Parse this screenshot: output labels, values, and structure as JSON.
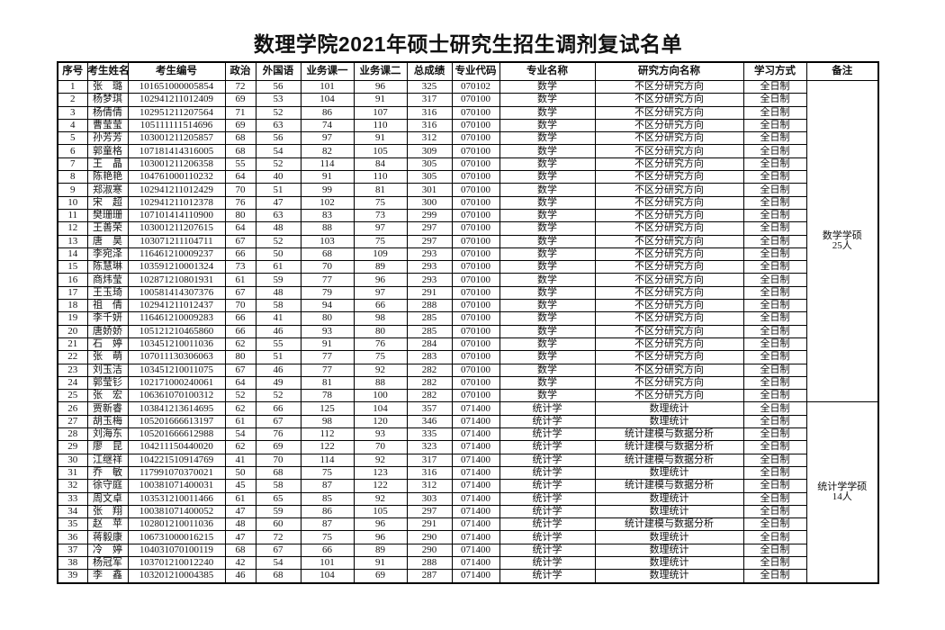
{
  "title": "数理学院2021年硕士研究生招生调剂复试名单",
  "table": {
    "headers": [
      {
        "label": "序号",
        "width": 33
      },
      {
        "label": "考生姓名",
        "width": 45
      },
      {
        "label": "考生编号",
        "width": 108
      },
      {
        "label": "政治",
        "width": 34
      },
      {
        "label": "外国语",
        "width": 50
      },
      {
        "label": "业务课一",
        "width": 59
      },
      {
        "label": "业务课二",
        "width": 59
      },
      {
        "label": "总成绩",
        "width": 50
      },
      {
        "label": "专业代码",
        "width": 53
      },
      {
        "label": "专业名称",
        "width": 106
      },
      {
        "label": "研究方向名称",
        "width": 165
      },
      {
        "label": "学习方式",
        "width": 70
      },
      {
        "label": "备注",
        "width": 80
      }
    ],
    "rows": [
      [
        "1",
        "张　璐",
        "101651000005854",
        "72",
        "56",
        "101",
        "96",
        "325",
        "070102",
        "数学",
        "不区分研究方向",
        "全日制"
      ],
      [
        "2",
        "杨梦琪",
        "102941211012409",
        "69",
        "53",
        "104",
        "91",
        "317",
        "070100",
        "数学",
        "不区分研究方向",
        "全日制"
      ],
      [
        "3",
        "杨倩倩",
        "102951211207564",
        "71",
        "52",
        "86",
        "107",
        "316",
        "070100",
        "数学",
        "不区分研究方向",
        "全日制"
      ],
      [
        "4",
        "曹莹莹",
        "105111111514696",
        "69",
        "63",
        "74",
        "110",
        "316",
        "070100",
        "数学",
        "不区分研究方向",
        "全日制"
      ],
      [
        "5",
        "孙芳芳",
        "103001211205857",
        "68",
        "56",
        "97",
        "91",
        "312",
        "070100",
        "数学",
        "不区分研究方向",
        "全日制"
      ],
      [
        "6",
        "郭童格",
        "107181414316005",
        "68",
        "54",
        "82",
        "105",
        "309",
        "070100",
        "数学",
        "不区分研究方向",
        "全日制"
      ],
      [
        "7",
        "王　晶",
        "103001211206358",
        "55",
        "52",
        "114",
        "84",
        "305",
        "070100",
        "数学",
        "不区分研究方向",
        "全日制"
      ],
      [
        "8",
        "陈艳艳",
        "104761000110232",
        "64",
        "40",
        "91",
        "110",
        "305",
        "070100",
        "数学",
        "不区分研究方向",
        "全日制"
      ],
      [
        "9",
        "郑淑寒",
        "102941211012429",
        "70",
        "51",
        "99",
        "81",
        "301",
        "070100",
        "数学",
        "不区分研究方向",
        "全日制"
      ],
      [
        "10",
        "宋　超",
        "102941211012378",
        "76",
        "47",
        "102",
        "75",
        "300",
        "070100",
        "数学",
        "不区分研究方向",
        "全日制"
      ],
      [
        "11",
        "樊珊珊",
        "107101414110900",
        "80",
        "63",
        "83",
        "73",
        "299",
        "070100",
        "数学",
        "不区分研究方向",
        "全日制"
      ],
      [
        "12",
        "王善荣",
        "103001211207615",
        "64",
        "48",
        "88",
        "97",
        "297",
        "070100",
        "数学",
        "不区分研究方向",
        "全日制"
      ],
      [
        "13",
        "唐　昊",
        "103071211104711",
        "67",
        "52",
        "103",
        "75",
        "297",
        "070100",
        "数学",
        "不区分研究方向",
        "全日制"
      ],
      [
        "14",
        "李宛泽",
        "116461210009237",
        "66",
        "50",
        "68",
        "109",
        "293",
        "070100",
        "数学",
        "不区分研究方向",
        "全日制"
      ],
      [
        "15",
        "陈慧琳",
        "103591210001324",
        "73",
        "61",
        "70",
        "89",
        "293",
        "070100",
        "数学",
        "不区分研究方向",
        "全日制"
      ],
      [
        "16",
        "商炜莹",
        "102871210801931",
        "61",
        "59",
        "77",
        "96",
        "293",
        "070100",
        "数学",
        "不区分研究方向",
        "全日制"
      ],
      [
        "17",
        "王玉琦",
        "100581414307376",
        "67",
        "48",
        "79",
        "97",
        "291",
        "070100",
        "数学",
        "不区分研究方向",
        "全日制"
      ],
      [
        "18",
        "祖　倩",
        "102941211012437",
        "70",
        "58",
        "94",
        "66",
        "288",
        "070100",
        "数学",
        "不区分研究方向",
        "全日制"
      ],
      [
        "19",
        "李千妍",
        "116461210009283",
        "66",
        "41",
        "80",
        "98",
        "285",
        "070100",
        "数学",
        "不区分研究方向",
        "全日制"
      ],
      [
        "20",
        "唐娇娇",
        "105121210465860",
        "66",
        "46",
        "93",
        "80",
        "285",
        "070100",
        "数学",
        "不区分研究方向",
        "全日制"
      ],
      [
        "21",
        "石　婷",
        "103451210011036",
        "62",
        "55",
        "91",
        "76",
        "284",
        "070100",
        "数学",
        "不区分研究方向",
        "全日制"
      ],
      [
        "22",
        "张　萌",
        "107011130306063",
        "80",
        "51",
        "77",
        "75",
        "283",
        "070100",
        "数学",
        "不区分研究方向",
        "全日制"
      ],
      [
        "23",
        "刘玉洁",
        "103451210011075",
        "67",
        "46",
        "77",
        "92",
        "282",
        "070100",
        "数学",
        "不区分研究方向",
        "全日制"
      ],
      [
        "24",
        "郭莹钐",
        "102171000240061",
        "64",
        "49",
        "81",
        "88",
        "282",
        "070100",
        "数学",
        "不区分研究方向",
        "全日制"
      ],
      [
        "25",
        "张　宏",
        "106361070100312",
        "52",
        "52",
        "78",
        "100",
        "282",
        "070100",
        "数学",
        "不区分研究方向",
        "全日制"
      ],
      [
        "26",
        "贾新睿",
        "103841213614695",
        "62",
        "66",
        "125",
        "104",
        "357",
        "071400",
        "统计学",
        "数理统计",
        "全日制"
      ],
      [
        "27",
        "胡玉梅",
        "105201666613197",
        "61",
        "67",
        "98",
        "120",
        "346",
        "071400",
        "统计学",
        "数理统计",
        "全日制"
      ],
      [
        "28",
        "刘海东",
        "105201666612988",
        "54",
        "76",
        "112",
        "93",
        "335",
        "071400",
        "统计学",
        "统计建模与数据分析",
        "全日制"
      ],
      [
        "29",
        "廖　昆",
        "104211150440020",
        "62",
        "69",
        "122",
        "70",
        "323",
        "071400",
        "统计学",
        "统计建模与数据分析",
        "全日制"
      ],
      [
        "30",
        "江继祥",
        "104221510914769",
        "41",
        "70",
        "114",
        "92",
        "317",
        "071400",
        "统计学",
        "统计建模与数据分析",
        "全日制"
      ],
      [
        "31",
        "乔　敏",
        "117991070370021",
        "50",
        "68",
        "75",
        "123",
        "316",
        "071400",
        "统计学",
        "数理统计",
        "全日制"
      ],
      [
        "32",
        "徐守庭",
        "100381071400031",
        "45",
        "58",
        "87",
        "122",
        "312",
        "071400",
        "统计学",
        "统计建模与数据分析",
        "全日制"
      ],
      [
        "33",
        "周文卓",
        "103531210011466",
        "61",
        "65",
        "85",
        "92",
        "303",
        "071400",
        "统计学",
        "数理统计",
        "全日制"
      ],
      [
        "34",
        "张　翔",
        "100381071400052",
        "47",
        "59",
        "86",
        "105",
        "297",
        "071400",
        "统计学",
        "数理统计",
        "全日制"
      ],
      [
        "35",
        "赵　苹",
        "102801210011036",
        "48",
        "60",
        "87",
        "96",
        "291",
        "071400",
        "统计学",
        "统计建模与数据分析",
        "全日制"
      ],
      [
        "36",
        "蒋毅康",
        "106731000016215",
        "47",
        "72",
        "75",
        "96",
        "290",
        "071400",
        "统计学",
        "数理统计",
        "全日制"
      ],
      [
        "37",
        "冷　婷",
        "104031070100119",
        "68",
        "67",
        "66",
        "89",
        "290",
        "071400",
        "统计学",
        "数理统计",
        "全日制"
      ],
      [
        "38",
        "杨冠军",
        "103701210012240",
        "42",
        "54",
        "101",
        "91",
        "288",
        "071400",
        "统计学",
        "数理统计",
        "全日制"
      ],
      [
        "39",
        "李　鑫",
        "103201210004385",
        "46",
        "68",
        "104",
        "69",
        "287",
        "071400",
        "统计学",
        "数理统计",
        "全日制"
      ]
    ],
    "remark_groups": [
      {
        "start_index": 0,
        "row_span": 25,
        "lines": [
          "数学学硕",
          "25人"
        ]
      },
      {
        "start_index": 25,
        "row_span": 14,
        "lines": [
          "统计学学硕",
          "14人"
        ]
      }
    ]
  }
}
